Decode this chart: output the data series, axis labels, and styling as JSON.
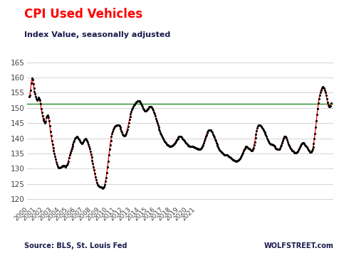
{
  "title": "CPI Used Vehicles",
  "subtitle": "Index Value, seasonally adjusted",
  "source_left": "Source: BLS, St. Louis Fed",
  "source_right": "WOLFSTREET.com",
  "title_color": "#ff0000",
  "subtitle_color": "#1a1a4e",
  "source_color": "#1a1a4e",
  "line_color": "#ff0000",
  "dot_color": "#000000",
  "hline_color": "#228B22",
  "hline_value": 151.3,
  "ylim": [
    118,
    167
  ],
  "yticks": [
    120,
    125,
    130,
    135,
    140,
    145,
    150,
    155,
    160,
    165
  ],
  "background_color": "#ffffff",
  "grid_color": "#cccccc",
  "values": [
    153.6,
    154.2,
    155.7,
    158.1,
    159.8,
    159.3,
    158.0,
    156.5,
    155.3,
    154.6,
    153.7,
    153.0,
    152.5,
    152.8,
    153.5,
    153.1,
    152.5,
    151.3,
    149.8,
    148.5,
    147.4,
    146.5,
    146.0,
    145.4,
    145.0,
    145.6,
    146.8,
    147.3,
    147.5,
    147.0,
    145.7,
    144.0,
    142.3,
    140.9,
    139.3,
    138.0,
    136.8,
    136.0,
    135.0,
    134.1,
    133.1,
    132.2,
    131.4,
    130.8,
    130.4,
    130.3,
    130.3,
    130.5,
    130.6,
    130.7,
    130.7,
    130.9,
    131.1,
    131.0,
    130.8,
    130.6,
    131.0,
    131.3,
    131.7,
    132.5,
    133.5,
    134.4,
    135.2,
    136.0,
    136.7,
    137.3,
    138.0,
    138.7,
    139.3,
    139.8,
    140.2,
    140.4,
    140.5,
    140.3,
    140.0,
    139.6,
    139.2,
    138.7,
    138.4,
    138.3,
    138.4,
    138.6,
    139.0,
    139.4,
    139.7,
    139.8,
    139.6,
    139.2,
    138.7,
    138.0,
    137.3,
    136.5,
    135.7,
    134.8,
    133.7,
    132.7,
    131.7,
    130.5,
    129.5,
    128.4,
    127.3,
    126.3,
    125.5,
    124.8,
    124.4,
    124.2,
    124.1,
    124.0,
    124.0,
    123.9,
    123.8,
    123.6,
    123.7,
    124.1,
    124.8,
    125.8,
    127.1,
    128.6,
    130.5,
    132.5,
    134.5,
    136.4,
    137.9,
    139.3,
    140.5,
    141.5,
    142.3,
    143.0,
    143.5,
    143.8,
    144.0,
    144.2,
    144.3,
    144.4,
    144.4,
    144.3,
    144.0,
    143.6,
    143.1,
    142.5,
    141.9,
    141.4,
    141.0,
    140.8,
    140.8,
    141.1,
    141.6,
    142.2,
    143.0,
    143.9,
    145.0,
    146.1,
    147.1,
    148.0,
    148.8,
    149.5,
    150.0,
    150.5,
    150.9,
    151.2,
    151.5,
    151.8,
    152.0,
    152.2,
    152.3,
    152.3,
    152.2,
    152.0,
    151.7,
    151.3,
    150.8,
    150.3,
    149.8,
    149.4,
    149.1,
    149.0,
    149.0,
    149.2,
    149.5,
    149.8,
    150.1,
    150.4,
    150.5,
    150.5,
    150.4,
    150.1,
    149.7,
    149.2,
    148.6,
    148.0,
    147.3,
    146.5,
    145.7,
    145.0,
    144.3,
    143.6,
    143.0,
    142.4,
    141.8,
    141.3,
    140.8,
    140.3,
    139.8,
    139.4,
    139.0,
    138.7,
    138.4,
    138.1,
    137.9,
    137.7,
    137.6,
    137.5,
    137.4,
    137.4,
    137.4,
    137.5,
    137.6,
    137.8,
    138.0,
    138.3,
    138.6,
    139.0,
    139.4,
    139.7,
    140.0,
    140.3,
    140.5,
    140.6,
    140.6,
    140.5,
    140.3,
    140.0,
    139.7,
    139.4,
    139.1,
    138.8,
    138.5,
    138.2,
    138.0,
    137.8,
    137.6,
    137.5,
    137.4,
    137.3,
    137.3,
    137.3,
    137.3,
    137.2,
    137.1,
    137.0,
    136.9,
    136.8,
    136.7,
    136.6,
    136.5,
    136.4,
    136.3,
    136.3,
    136.4,
    136.6,
    136.9,
    137.3,
    137.8,
    138.4,
    139.1,
    139.8,
    140.5,
    141.1,
    141.7,
    142.1,
    142.5,
    142.7,
    142.8,
    142.8,
    142.6,
    142.3,
    141.9,
    141.4,
    140.9,
    140.3,
    139.7,
    139.1,
    138.5,
    138.0,
    137.5,
    137.0,
    136.6,
    136.2,
    135.9,
    135.6,
    135.4,
    135.2,
    135.0,
    134.8,
    134.6,
    134.5,
    134.5,
    134.5,
    134.5,
    134.4,
    134.3,
    134.1,
    133.9,
    133.7,
    133.5,
    133.3,
    133.1,
    132.9,
    132.8,
    132.7,
    132.6,
    132.5,
    132.5,
    132.5,
    132.6,
    132.7,
    132.8,
    133.0,
    133.3,
    133.7,
    134.2,
    134.7,
    135.3,
    135.8,
    136.3,
    136.7,
    137.0,
    137.2,
    137.2,
    137.1,
    136.9,
    136.7,
    136.5,
    136.3,
    136.1,
    136.0,
    136.0,
    136.3,
    136.9,
    137.7,
    138.8,
    140.1,
    141.4,
    142.5,
    143.4,
    144.0,
    144.3,
    144.4,
    144.3,
    144.1,
    143.8,
    143.5,
    143.1,
    142.7,
    142.3,
    141.9,
    141.5,
    141.0,
    140.5,
    140.0,
    139.5,
    139.0,
    138.6,
    138.3,
    138.1,
    138.0,
    138.0,
    137.9,
    137.8,
    137.6,
    137.3,
    137.0,
    136.7,
    136.5,
    136.4,
    136.3,
    136.3,
    136.4,
    136.7,
    137.2,
    137.8,
    138.5,
    139.2,
    139.8,
    140.3,
    140.6,
    140.7,
    140.5,
    140.1,
    139.5,
    138.8,
    138.1,
    137.5,
    137.0,
    136.6,
    136.3,
    136.0,
    135.8,
    135.6,
    135.4,
    135.2,
    135.1,
    135.1,
    135.2,
    135.4,
    135.7,
    136.1,
    136.6,
    137.1,
    137.6,
    138.0,
    138.3,
    138.5,
    138.5,
    138.4,
    138.2,
    137.9,
    137.6,
    137.3,
    137.0,
    136.6,
    136.2,
    135.8,
    135.5,
    135.4,
    135.5,
    135.8,
    136.3,
    137.1,
    138.3,
    139.8,
    141.6,
    143.6,
    145.7,
    147.8,
    149.7,
    151.5,
    152.9,
    154.1,
    155.1,
    155.9,
    156.4,
    156.8,
    156.9,
    156.8,
    156.5,
    155.9,
    155.1,
    154.1,
    152.9,
    151.8,
    150.9,
    150.4,
    150.3,
    150.7,
    151.5
  ],
  "start_year": 2000,
  "x_tick_years": [
    2000,
    2001,
    2002,
    2003,
    2004,
    2005,
    2006,
    2007,
    2008,
    2009,
    2010,
    2011,
    2012,
    2013,
    2014,
    2015,
    2016,
    2017,
    2018,
    2019,
    2020,
    2021
  ]
}
